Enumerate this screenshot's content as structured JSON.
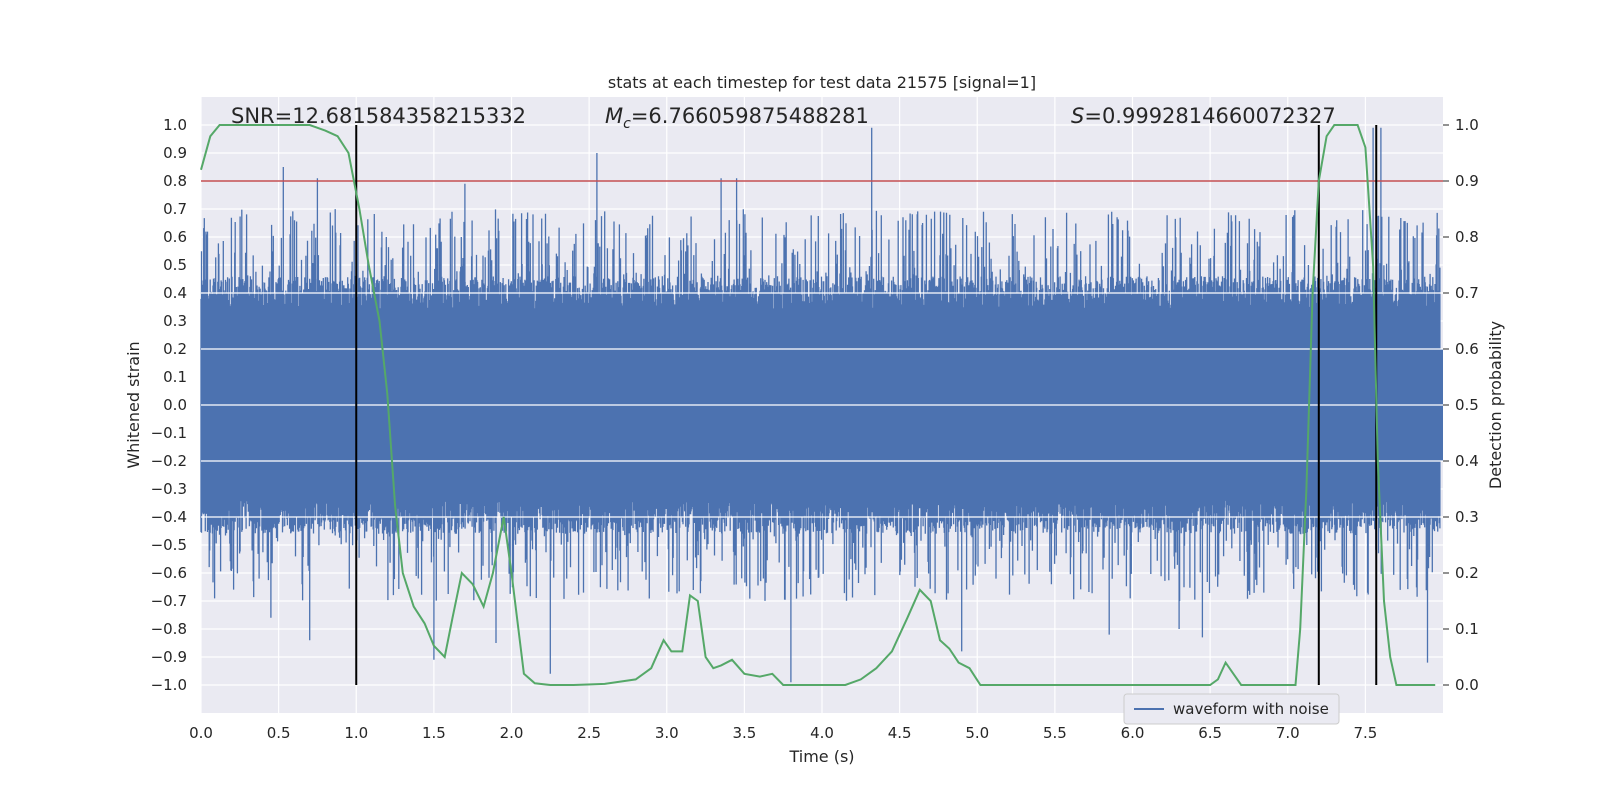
{
  "chart_data": {
    "type": "line",
    "title": "stats at each timestep for test data 21575 [signal=1]",
    "xlabel": "Time (s)",
    "ylabel_left": "Whitened strain",
    "ylabel_right": "Detection probability",
    "xlim": [
      0.0,
      8.0
    ],
    "ylim_left": [
      -1.1,
      1.1
    ],
    "ylim_right": [
      -0.05,
      1.05
    ],
    "x_ticks": [
      "0.0",
      "0.5",
      "1.0",
      "1.5",
      "2.0",
      "2.5",
      "3.0",
      "3.5",
      "4.0",
      "4.5",
      "5.0",
      "5.5",
      "6.0",
      "6.5",
      "7.0",
      "7.5"
    ],
    "y_left_ticks": [
      "1.0",
      "0.9",
      "0.8",
      "0.7",
      "0.6",
      "0.5",
      "0.4",
      "0.3",
      "0.2",
      "0.1",
      "0.0",
      "−0.1",
      "−0.2",
      "−0.3",
      "−0.4",
      "−0.5",
      "−0.6",
      "−0.7",
      "−0.8",
      "−0.9",
      "−1.0"
    ],
    "y_right_ticks": [
      "1.0",
      "0.9",
      "0.8",
      "0.7",
      "0.6",
      "0.5",
      "0.4",
      "0.3",
      "0.2",
      "0.1",
      "0.0"
    ],
    "grid": true,
    "annotations": {
      "snr": "SNR=12.681584358215332",
      "mc_symbol": "M",
      "mc_sub": "c",
      "mc_value": "=6.766059875488281",
      "s_symbol": "S",
      "s_value": "=0.9992814660072327"
    },
    "threshold": {
      "axis": "right",
      "value": 0.9,
      "color": "#c44e52"
    },
    "vertical_lines": [
      1.0,
      7.2,
      7.57
    ],
    "waveform": {
      "name": "waveform with noise",
      "color": "#4c72b0",
      "envelope_top_typical": 0.4,
      "envelope_bottom_typical": -0.4,
      "peaks_pos": [
        [
          0.53,
          0.85
        ],
        [
          0.75,
          0.81
        ],
        [
          1.7,
          0.79
        ],
        [
          2.55,
          0.9
        ],
        [
          3.35,
          0.81
        ],
        [
          3.45,
          0.81
        ],
        [
          4.32,
          0.99
        ],
        [
          7.55,
          0.99
        ],
        [
          7.6,
          0.99
        ]
      ],
      "peaks_neg": [
        [
          0.45,
          -0.76
        ],
        [
          0.7,
          -0.84
        ],
        [
          1.5,
          -0.91
        ],
        [
          1.9,
          -0.85
        ],
        [
          2.25,
          -0.96
        ],
        [
          3.8,
          -0.99
        ],
        [
          4.9,
          -0.88
        ],
        [
          5.85,
          -0.82
        ],
        [
          6.3,
          -0.8
        ],
        [
          6.45,
          -0.83
        ],
        [
          7.9,
          -0.92
        ]
      ]
    },
    "probability": {
      "color": "#55a868",
      "x": [
        0.0,
        0.06,
        0.12,
        0.2,
        0.3,
        0.4,
        0.5,
        0.6,
        0.7,
        0.8,
        0.88,
        0.95,
        1.02,
        1.08,
        1.15,
        1.2,
        1.25,
        1.3,
        1.37,
        1.44,
        1.5,
        1.57,
        1.62,
        1.68,
        1.75,
        1.82,
        1.88,
        1.95,
        2.0,
        2.08,
        2.15,
        2.25,
        2.4,
        2.6,
        2.8,
        2.9,
        2.98,
        3.03,
        3.1,
        3.15,
        3.2,
        3.25,
        3.3,
        3.35,
        3.42,
        3.5,
        3.6,
        3.68,
        3.75,
        3.85,
        3.95,
        4.05,
        4.15,
        4.25,
        4.35,
        4.45,
        4.55,
        4.63,
        4.7,
        4.76,
        4.82,
        4.88,
        4.95,
        5.02,
        5.1,
        5.2,
        5.3,
        5.5,
        5.7,
        5.9,
        6.1,
        6.3,
        6.4,
        6.5,
        6.55,
        6.6,
        6.65,
        6.7,
        6.8,
        6.9,
        6.95,
        7.0,
        7.05,
        7.08,
        7.12,
        7.16,
        7.2,
        7.25,
        7.3,
        7.37,
        7.45,
        7.5,
        7.55,
        7.58,
        7.62,
        7.66,
        7.7,
        7.76,
        7.82,
        7.9,
        7.95
      ],
      "y": [
        0.92,
        0.98,
        1.0,
        1.0,
        1.0,
        1.0,
        1.0,
        1.0,
        1.0,
        0.99,
        0.98,
        0.95,
        0.85,
        0.75,
        0.65,
        0.52,
        0.32,
        0.2,
        0.14,
        0.11,
        0.07,
        0.05,
        0.12,
        0.2,
        0.18,
        0.14,
        0.2,
        0.3,
        0.2,
        0.02,
        0.003,
        0.0,
        0.0,
        0.002,
        0.01,
        0.03,
        0.08,
        0.06,
        0.06,
        0.16,
        0.15,
        0.05,
        0.03,
        0.035,
        0.045,
        0.02,
        0.015,
        0.02,
        0.0,
        0.0,
        0.0,
        0.0,
        0.0,
        0.01,
        0.03,
        0.06,
        0.12,
        0.17,
        0.15,
        0.08,
        0.065,
        0.04,
        0.03,
        0.0,
        0.0,
        0.0,
        0.0,
        0.0,
        0.0,
        0.0,
        0.0,
        0.0,
        0.0,
        0.0,
        0.01,
        0.04,
        0.02,
        0.0,
        0.0,
        0.0,
        0.0,
        0.0,
        0.0,
        0.1,
        0.35,
        0.7,
        0.9,
        0.98,
        1.0,
        1.0,
        1.0,
        0.96,
        0.75,
        0.4,
        0.15,
        0.05,
        0.0,
        0.0,
        0.0,
        0.0,
        0.0
      ]
    },
    "legend": {
      "label": "waveform with noise",
      "placement": "lower-right"
    }
  }
}
